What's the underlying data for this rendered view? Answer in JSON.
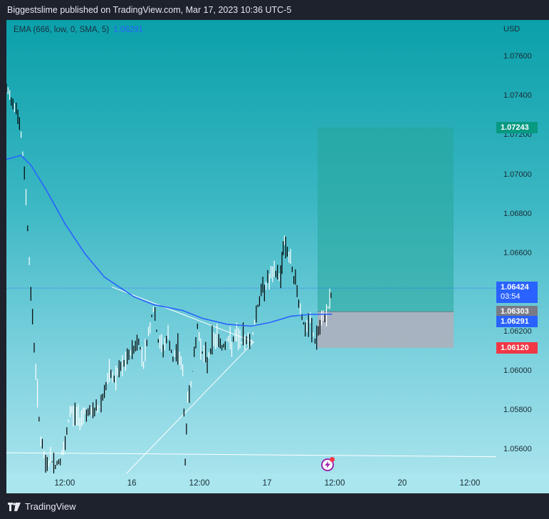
{
  "header": {
    "published": "Biggestslime published on TradingView.com, Mar 17, 2023 10:36 UTC-5"
  },
  "legend": {
    "label": "EMA (666, low, 0, SMA, 5)",
    "value": "1.06291"
  },
  "price_axis": {
    "currency": "USD",
    "ticks": [
      "1.07600",
      "1.07400",
      "1.07200",
      "1.07000",
      "1.06800",
      "1.06600",
      "1.06400",
      "1.06200",
      "1.06000",
      "1.05800",
      "1.05600"
    ],
    "badges": {
      "target": "1.07243",
      "last": "1.06424",
      "countdown": "03:54",
      "entry": "1.06303",
      "ema": "1.06291",
      "stop": "1.06120"
    }
  },
  "time_axis": {
    "labels": [
      "12:00",
      "16",
      "12:00",
      "17",
      "12:00",
      "20",
      "12:00"
    ]
  },
  "footer": {
    "brand": "TradingView"
  },
  "colors": {
    "ema_line": "#2962ff",
    "target_badge": "#089981",
    "stop_badge": "#f23645",
    "entry_badge": "#787b86",
    "last_badge": "#2962ff",
    "profit_zone": "#26a69a",
    "loss_zone": "#b0aebb"
  },
  "chart_data": {
    "type": "candlestick",
    "symbol_currency": "USD",
    "ylim": [
      1.0548,
      1.0779
    ],
    "x_ticks": [
      "12:00",
      "16",
      "12:00",
      "17",
      "12:00",
      "20",
      "12:00"
    ],
    "price_path": [
      [
        0,
        1.0743
      ],
      [
        0.02,
        1.0735
      ],
      [
        0.03,
        1.072
      ],
      [
        0.04,
        1.069
      ],
      [
        0.05,
        1.064
      ],
      [
        0.06,
        1.06
      ],
      [
        0.07,
        1.0565
      ],
      [
        0.08,
        1.0552
      ],
      [
        0.09,
        1.0555
      ],
      [
        0.1,
        1.0552
      ],
      [
        0.11,
        1.0555
      ],
      [
        0.12,
        1.0562
      ],
      [
        0.13,
        1.058
      ],
      [
        0.14,
        1.0578
      ],
      [
        0.15,
        1.0576
      ],
      [
        0.16,
        1.058
      ],
      [
        0.17,
        1.0578
      ],
      [
        0.18,
        1.058
      ],
      [
        0.19,
        1.0582
      ],
      [
        0.2,
        1.059
      ],
      [
        0.21,
        1.0598
      ],
      [
        0.22,
        1.0596
      ],
      [
        0.23,
        1.06
      ],
      [
        0.24,
        1.0603
      ],
      [
        0.25,
        1.0608
      ],
      [
        0.26,
        1.0612
      ],
      [
        0.27,
        1.0615
      ],
      [
        0.28,
        1.0605
      ],
      [
        0.29,
        1.062
      ],
      [
        0.3,
        1.0632
      ],
      [
        0.31,
        1.0615
      ],
      [
        0.32,
        1.0612
      ],
      [
        0.33,
        1.0618
      ],
      [
        0.34,
        1.0605
      ],
      [
        0.35,
        1.0612
      ],
      [
        0.36,
        1.06
      ],
      [
        0.365,
        1.0555
      ],
      [
        0.37,
        1.0585
      ],
      [
        0.38,
        1.06
      ],
      [
        0.39,
        1.0622
      ],
      [
        0.4,
        1.061
      ],
      [
        0.41,
        1.0605
      ],
      [
        0.42,
        1.0615
      ],
      [
        0.43,
        1.0618
      ],
      [
        0.44,
        1.0612
      ],
      [
        0.45,
        1.0616
      ],
      [
        0.46,
        1.0614
      ],
      [
        0.47,
        1.0618
      ],
      [
        0.48,
        1.0615
      ],
      [
        0.49,
        1.0617
      ],
      [
        0.5,
        1.0615
      ],
      [
        0.51,
        1.063
      ],
      [
        0.52,
        1.064
      ],
      [
        0.53,
        1.0645
      ],
      [
        0.54,
        1.0648
      ],
      [
        0.55,
        1.065
      ],
      [
        0.56,
        1.0648
      ],
      [
        0.565,
        1.0665
      ],
      [
        0.57,
        1.0665
      ],
      [
        0.58,
        1.0655
      ],
      [
        0.59,
        1.0645
      ],
      [
        0.6,
        1.0632
      ],
      [
        0.61,
        1.062
      ],
      [
        0.62,
        1.0625
      ],
      [
        0.63,
        1.0615
      ],
      [
        0.64,
        1.0622
      ],
      [
        0.65,
        1.0628
      ],
      [
        0.66,
        1.0635
      ],
      [
        0.665,
        1.06424
      ]
    ],
    "ema": {
      "name": "EMA (666, low, 0, SMA, 5)",
      "points": [
        [
          0,
          1.0708
        ],
        [
          0.03,
          1.071
        ],
        [
          0.05,
          1.0705
        ],
        [
          0.08,
          1.0693
        ],
        [
          0.12,
          1.0675
        ],
        [
          0.16,
          1.066
        ],
        [
          0.2,
          1.0648
        ],
        [
          0.26,
          1.0638
        ],
        [
          0.3,
          1.0634
        ],
        [
          0.36,
          1.0631
        ],
        [
          0.4,
          1.0627
        ],
        [
          0.45,
          1.0624
        ],
        [
          0.5,
          1.0623
        ],
        [
          0.54,
          1.0625
        ],
        [
          0.58,
          1.0628
        ],
        [
          0.62,
          1.0629
        ],
        [
          0.665,
          1.06291
        ]
      ]
    },
    "position": {
      "type": "long",
      "entry": 1.06303,
      "target": 1.07243,
      "stop": 1.0612
    },
    "trendlines": [
      {
        "from": [
          0.215,
          1.0643
        ],
        "to": [
          0.505,
          1.0615
        ]
      },
      {
        "from": [
          0.245,
          1.0548
        ],
        "to": [
          0.505,
          1.0615
        ]
      },
      {
        "from": [
          0.0,
          1.05585
        ],
        "to": [
          1.0,
          1.05565
        ]
      }
    ],
    "last_price": 1.06424
  }
}
